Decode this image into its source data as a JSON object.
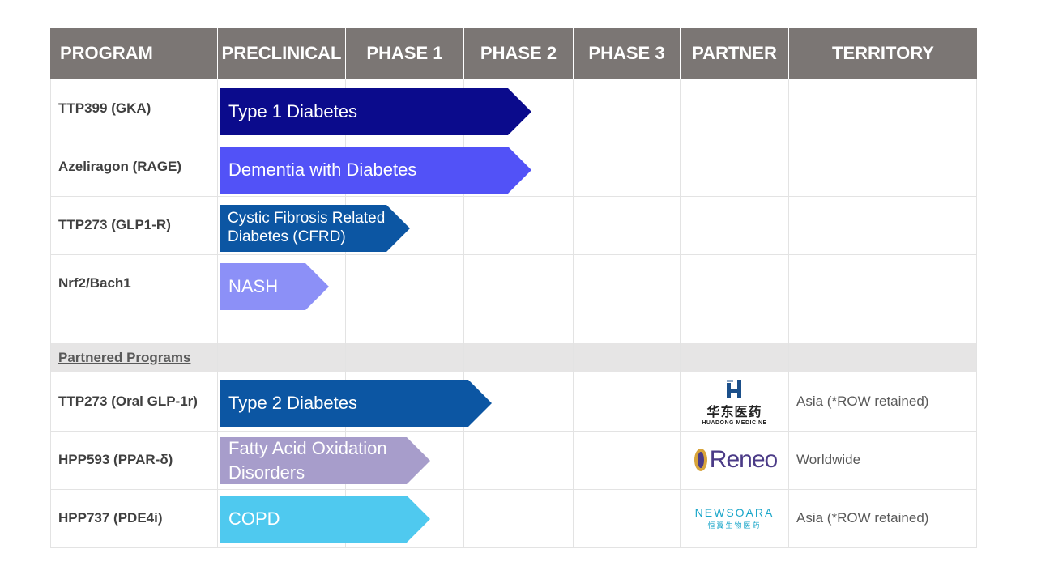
{
  "headers": [
    "PROGRAM",
    "PRECLINICAL",
    "PHASE 1",
    "PHASE 2",
    "PHASE 3",
    "PARTNER",
    "TERRITORY"
  ],
  "programs": [
    {
      "name": "TTP399 (GKA)",
      "indication": "Type 1 Diabetes",
      "color": "#0b0b8c",
      "stage_fraction": 0.667
    },
    {
      "name": "Azeliragon (RAGE)",
      "indication": "Dementia with Diabetes",
      "color": "#5252f7",
      "stage_fraction": 0.667
    },
    {
      "name": "TTP273 (GLP1-R)",
      "indication": "Cystic Fibrosis Related Diabetes (CFRD)",
      "indication_lines": [
        "Cystic Fibrosis Related",
        "Diabetes (CFRD)"
      ],
      "color": "#0c56a3",
      "stage_fraction": 0.333
    },
    {
      "name": "Nrf2/Bach1",
      "indication": "NASH",
      "color": "#8c90f7",
      "stage_fraction": 0.167
    }
  ],
  "partnered_label": "Partnered Programs",
  "partnered": [
    {
      "name": "TTP273 (Oral GLP-1r)",
      "indication": "Type 2 Diabetes",
      "color": "#0c56a3",
      "partner": "HUADONG MEDICINE",
      "partner_cn": "华东医药",
      "territory": "Asia (*ROW retained)",
      "stage_fraction": 0.5
    },
    {
      "name": "HPP593 (PPAR-δ)",
      "indication_lines": [
        "Fatty Acid Oxidation",
        "Disorders"
      ],
      "color": "#a79dcb",
      "partner": "Reneo",
      "territory": "Worldwide",
      "stage_fraction": 0.333
    },
    {
      "name": "HPP737 (PDE4i)",
      "indication": "COPD",
      "color": "#4fc9ef",
      "partner": "NEWSOARA",
      "partner_cn": "恒翼生物医药",
      "territory": "Asia (*ROW retained)",
      "stage_fraction": 0.333
    }
  ],
  "colors": {
    "header_bg": "#7b7674",
    "band_bg": "#e6e5e5",
    "huadong_blue": "#1b4f8a",
    "reneo_purple": "#4b3b87",
    "newsoara_teal": "#1aa6c9"
  }
}
